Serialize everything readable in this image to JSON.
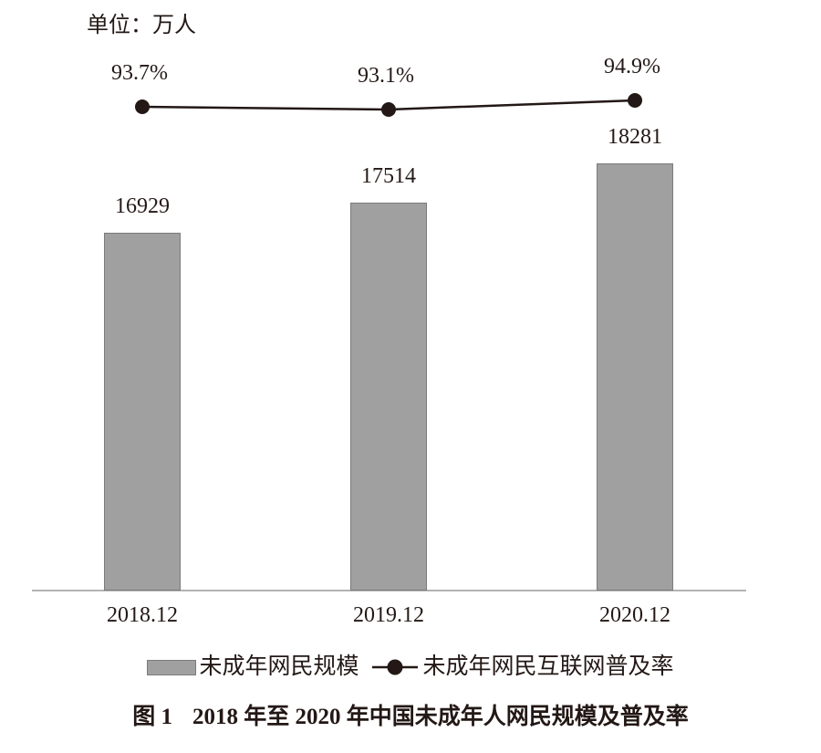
{
  "unit_label": "单位：万人",
  "colors": {
    "text": "#231815",
    "line": "#231815",
    "bar_fill": "#a0a0a0",
    "bar_border": "#7b7b7b",
    "axis": "#b3b3b3",
    "background": "#ffffff"
  },
  "chart_data": {
    "type": "bar",
    "categories": [
      "2018.12",
      "2019.12",
      "2020.12"
    ],
    "series": [
      {
        "name": "未成年网民规模",
        "type": "bar",
        "unit": "万人",
        "values": [
          16929,
          17514,
          18281
        ],
        "data_labels": [
          "16929",
          "17514",
          "18281"
        ]
      },
      {
        "name": "未成年网民互联网普及率",
        "type": "line",
        "unit": "%",
        "values": [
          93.7,
          93.1,
          94.9
        ],
        "data_labels": [
          "93.7%",
          "93.1%",
          "94.9%"
        ]
      }
    ],
    "title": "图 1　2018 年至 2020 年中国未成年人网民规模及普及率",
    "xlabel": "",
    "ylabel": "单位：万人",
    "grid": false,
    "y_axis_shown": false,
    "legend_position": "bottom"
  },
  "legend": {
    "bar_label": "未成年网民规模",
    "line_label": "未成年网民互联网普及率"
  },
  "caption": {
    "prefix": "图 1",
    "title": "2018 年至 2020 年中国未成年人网民规模及普及率"
  }
}
